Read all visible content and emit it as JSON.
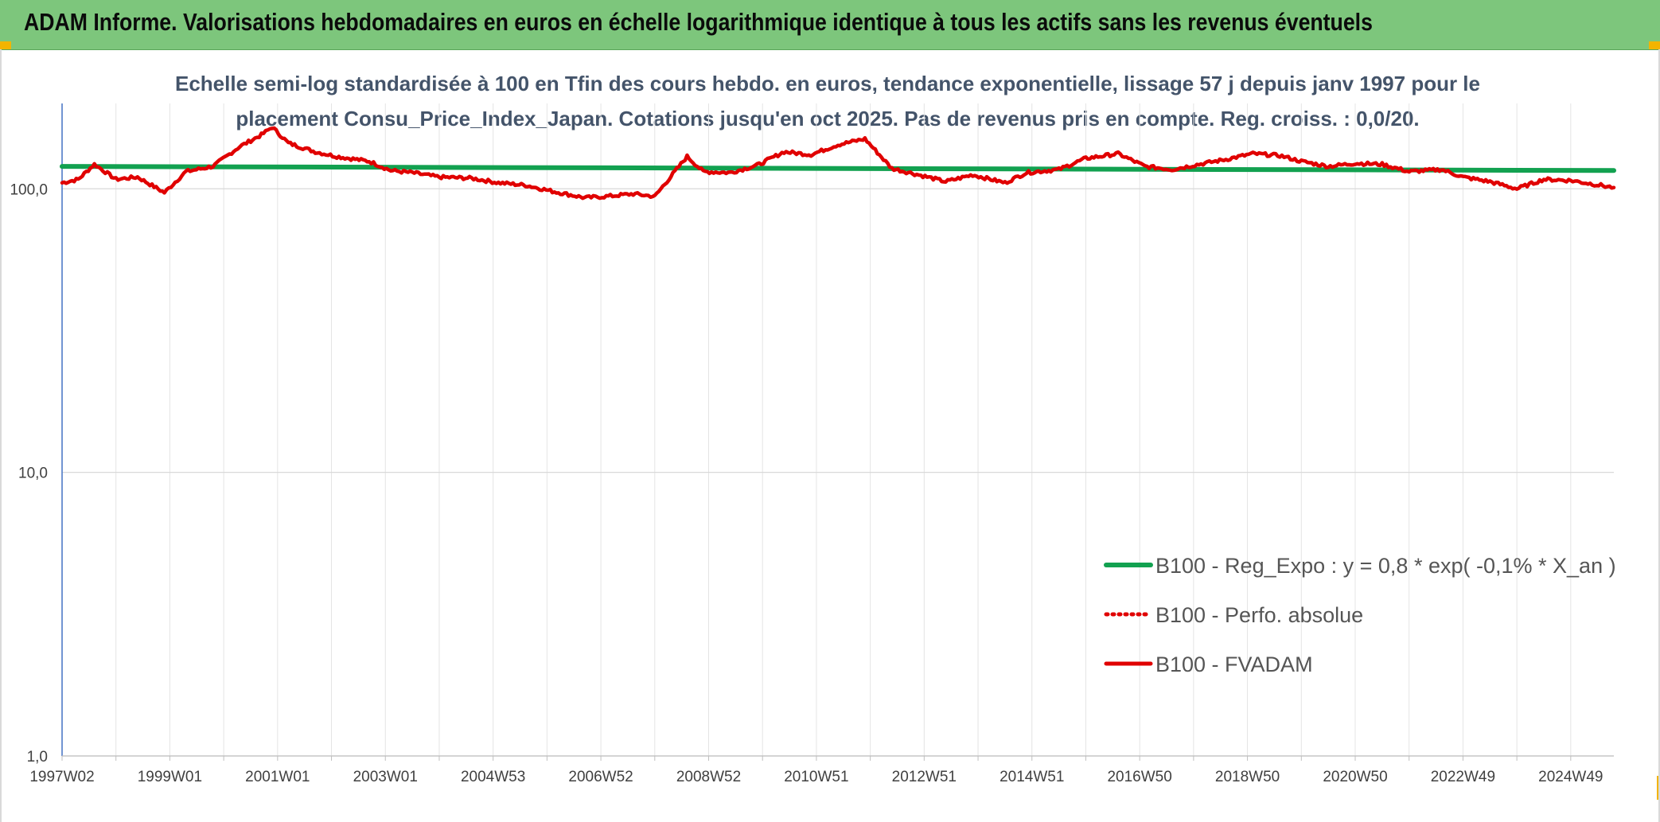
{
  "header": {
    "title": "ADAM Informe. Valorisations hebdomadaires en euros en échelle logarithmique identique à tous les actifs sans les revenus éventuels"
  },
  "colors": {
    "header_bg": "#7dc67c",
    "regression": "#12a150",
    "fvadam": "#e00000",
    "grid": "#d9d9d9",
    "axis": "#4472c4"
  },
  "chart_data": {
    "type": "line",
    "title_lines": [
      "Echelle semi-log standardisée à 100 en Tfin des cours hebdo. en euros, tendance exponentielle, lissage 57 j depuis janv 1997 pour le",
      "placement Consu_Price_Index_Japan. Cotations jusqu'en oct 2025. Pas de revenus pris en compte. Reg. croiss. : 0,0/20."
    ],
    "y_scale": "log",
    "ylim": [
      1,
      200
    ],
    "y_ticks": [
      {
        "value": 100,
        "label": "100,0"
      },
      {
        "value": 10,
        "label": "10,0"
      },
      {
        "value": 1,
        "label": "1,0"
      }
    ],
    "x_range": [
      1997.0,
      2025.8
    ],
    "x_ticks": [
      {
        "x": 1997.0,
        "label": "1997W02"
      },
      {
        "x": 1999.0,
        "label": "1999W01"
      },
      {
        "x": 2001.0,
        "label": "2001W01"
      },
      {
        "x": 2003.0,
        "label": "2003W01"
      },
      {
        "x": 2005.0,
        "label": "2004W53"
      },
      {
        "x": 2007.0,
        "label": "2006W52"
      },
      {
        "x": 2009.0,
        "label": "2008W52"
      },
      {
        "x": 2011.0,
        "label": "2010W51"
      },
      {
        "x": 2013.0,
        "label": "2012W51"
      },
      {
        "x": 2015.0,
        "label": "2014W51"
      },
      {
        "x": 2017.0,
        "label": "2016W50"
      },
      {
        "x": 2019.0,
        "label": "2018W50"
      },
      {
        "x": 2021.0,
        "label": "2020W50"
      },
      {
        "x": 2023.0,
        "label": "2022W49"
      },
      {
        "x": 2025.0,
        "label": "2024W49"
      }
    ],
    "legend_position": "lower-right",
    "series": [
      {
        "name": "B100 - Reg_Expo : y = 0,8 * exp( -0,1% *  X_an )",
        "style": "solid-thick",
        "x": [
          1997.0,
          2025.8
        ],
        "values": [
          120,
          116
        ]
      },
      {
        "name": "B100 - Perfo. absolue",
        "style": "dotted",
        "x": [],
        "values": []
      },
      {
        "name": "B100 - FVADAM",
        "style": "solid",
        "x": [
          1997.0,
          1997.3,
          1997.6,
          1998.0,
          1998.4,
          1998.9,
          1999.3,
          1999.8,
          2000.3,
          2000.7,
          2000.9,
          2001.2,
          2001.7,
          2002.1,
          2002.7,
          2003.1,
          2003.5,
          2004.0,
          2004.6,
          2005.1,
          2005.6,
          2006.1,
          2006.7,
          2007.1,
          2007.6,
          2008.0,
          2008.6,
          2008.9,
          2009.4,
          2009.9,
          2010.4,
          2010.9,
          2011.4,
          2011.9,
          2012.4,
          2012.9,
          2013.4,
          2013.9,
          2014.5,
          2014.9,
          2015.5,
          2016.0,
          2016.6,
          2017.1,
          2017.6,
          2018.1,
          2018.6,
          2019.1,
          2019.6,
          2020.0,
          2020.5,
          2021.0,
          2021.5,
          2022.0,
          2022.6,
          2023.0,
          2023.5,
          2024.0,
          2024.5,
          2025.0,
          2025.4,
          2025.8
        ],
        "values": [
          105,
          108,
          122,
          108,
          110,
          97,
          115,
          120,
          141,
          155,
          165,
          145,
          135,
          130,
          125,
          116,
          114,
          110,
          109,
          105,
          103,
          98,
          93,
          94,
          96,
          94,
          130,
          115,
          114,
          121,
          135,
          132,
          143,
          150,
          118,
          112,
          106,
          112,
          105,
          114,
          117,
          128,
          133,
          120,
          117,
          122,
          127,
          133,
          131,
          125,
          120,
          123,
          122,
          115,
          117,
          110,
          106,
          100,
          108,
          107,
          104,
          101
        ]
      }
    ]
  }
}
